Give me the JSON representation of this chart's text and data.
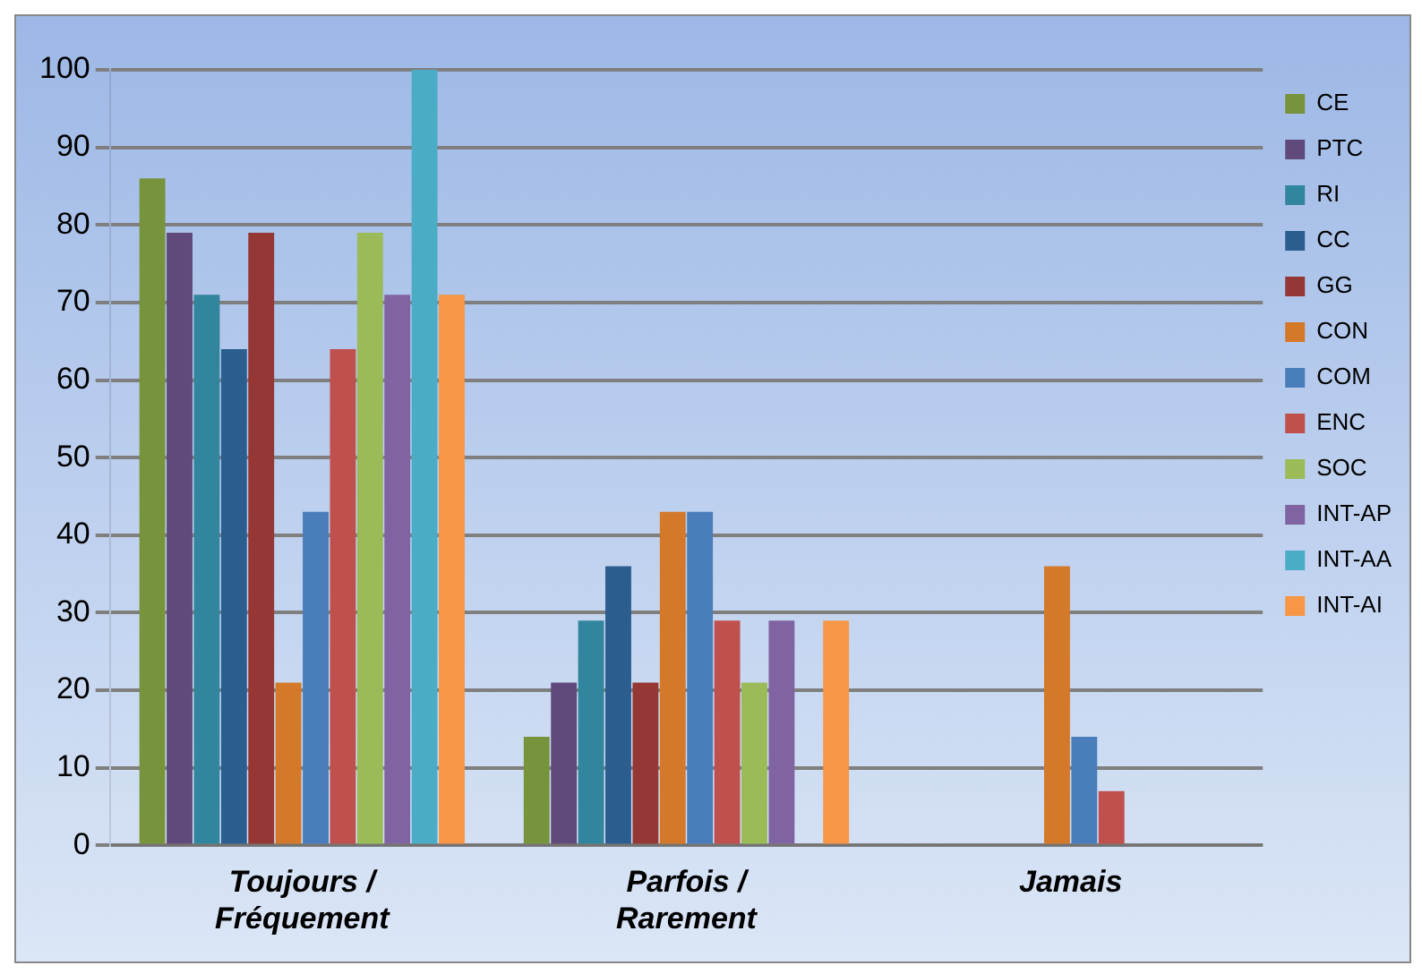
{
  "chart_data": {
    "type": "bar",
    "categories": [
      "Toujours / Fréquement",
      "Parfois / Rarement",
      "Jamais"
    ],
    "series": [
      {
        "name": "CE",
        "color": "#77933c",
        "values": [
          86,
          14,
          0
        ]
      },
      {
        "name": "PTC",
        "color": "#604a7b",
        "values": [
          79,
          21,
          0
        ]
      },
      {
        "name": "RI",
        "color": "#31859c",
        "values": [
          71,
          29,
          0
        ]
      },
      {
        "name": "CC",
        "color": "#2c5d8f",
        "values": [
          64,
          36,
          0
        ]
      },
      {
        "name": "GG",
        "color": "#953735",
        "values": [
          79,
          21,
          0
        ]
      },
      {
        "name": "CON",
        "color": "#d4792a",
        "values": [
          21,
          43,
          36
        ]
      },
      {
        "name": "COM",
        "color": "#4a7ebb",
        "values": [
          43,
          43,
          14
        ]
      },
      {
        "name": "ENC",
        "color": "#c0504d",
        "values": [
          64,
          29,
          7
        ]
      },
      {
        "name": "SOC",
        "color": "#9bbb59",
        "values": [
          79,
          21,
          0
        ]
      },
      {
        "name": "INT-AP",
        "color": "#8064a2",
        "values": [
          71,
          29,
          0
        ]
      },
      {
        "name": "INT-AA",
        "color": "#4bacc6",
        "values": [
          100,
          0,
          0
        ]
      },
      {
        "name": "INT-AI",
        "color": "#f79646",
        "values": [
          71,
          29,
          0
        ]
      }
    ],
    "ylim": [
      0,
      100
    ],
    "yticks": [
      0,
      10,
      20,
      30,
      40,
      50,
      60,
      70,
      80,
      90,
      100
    ],
    "grid": "y",
    "legend": "right"
  }
}
